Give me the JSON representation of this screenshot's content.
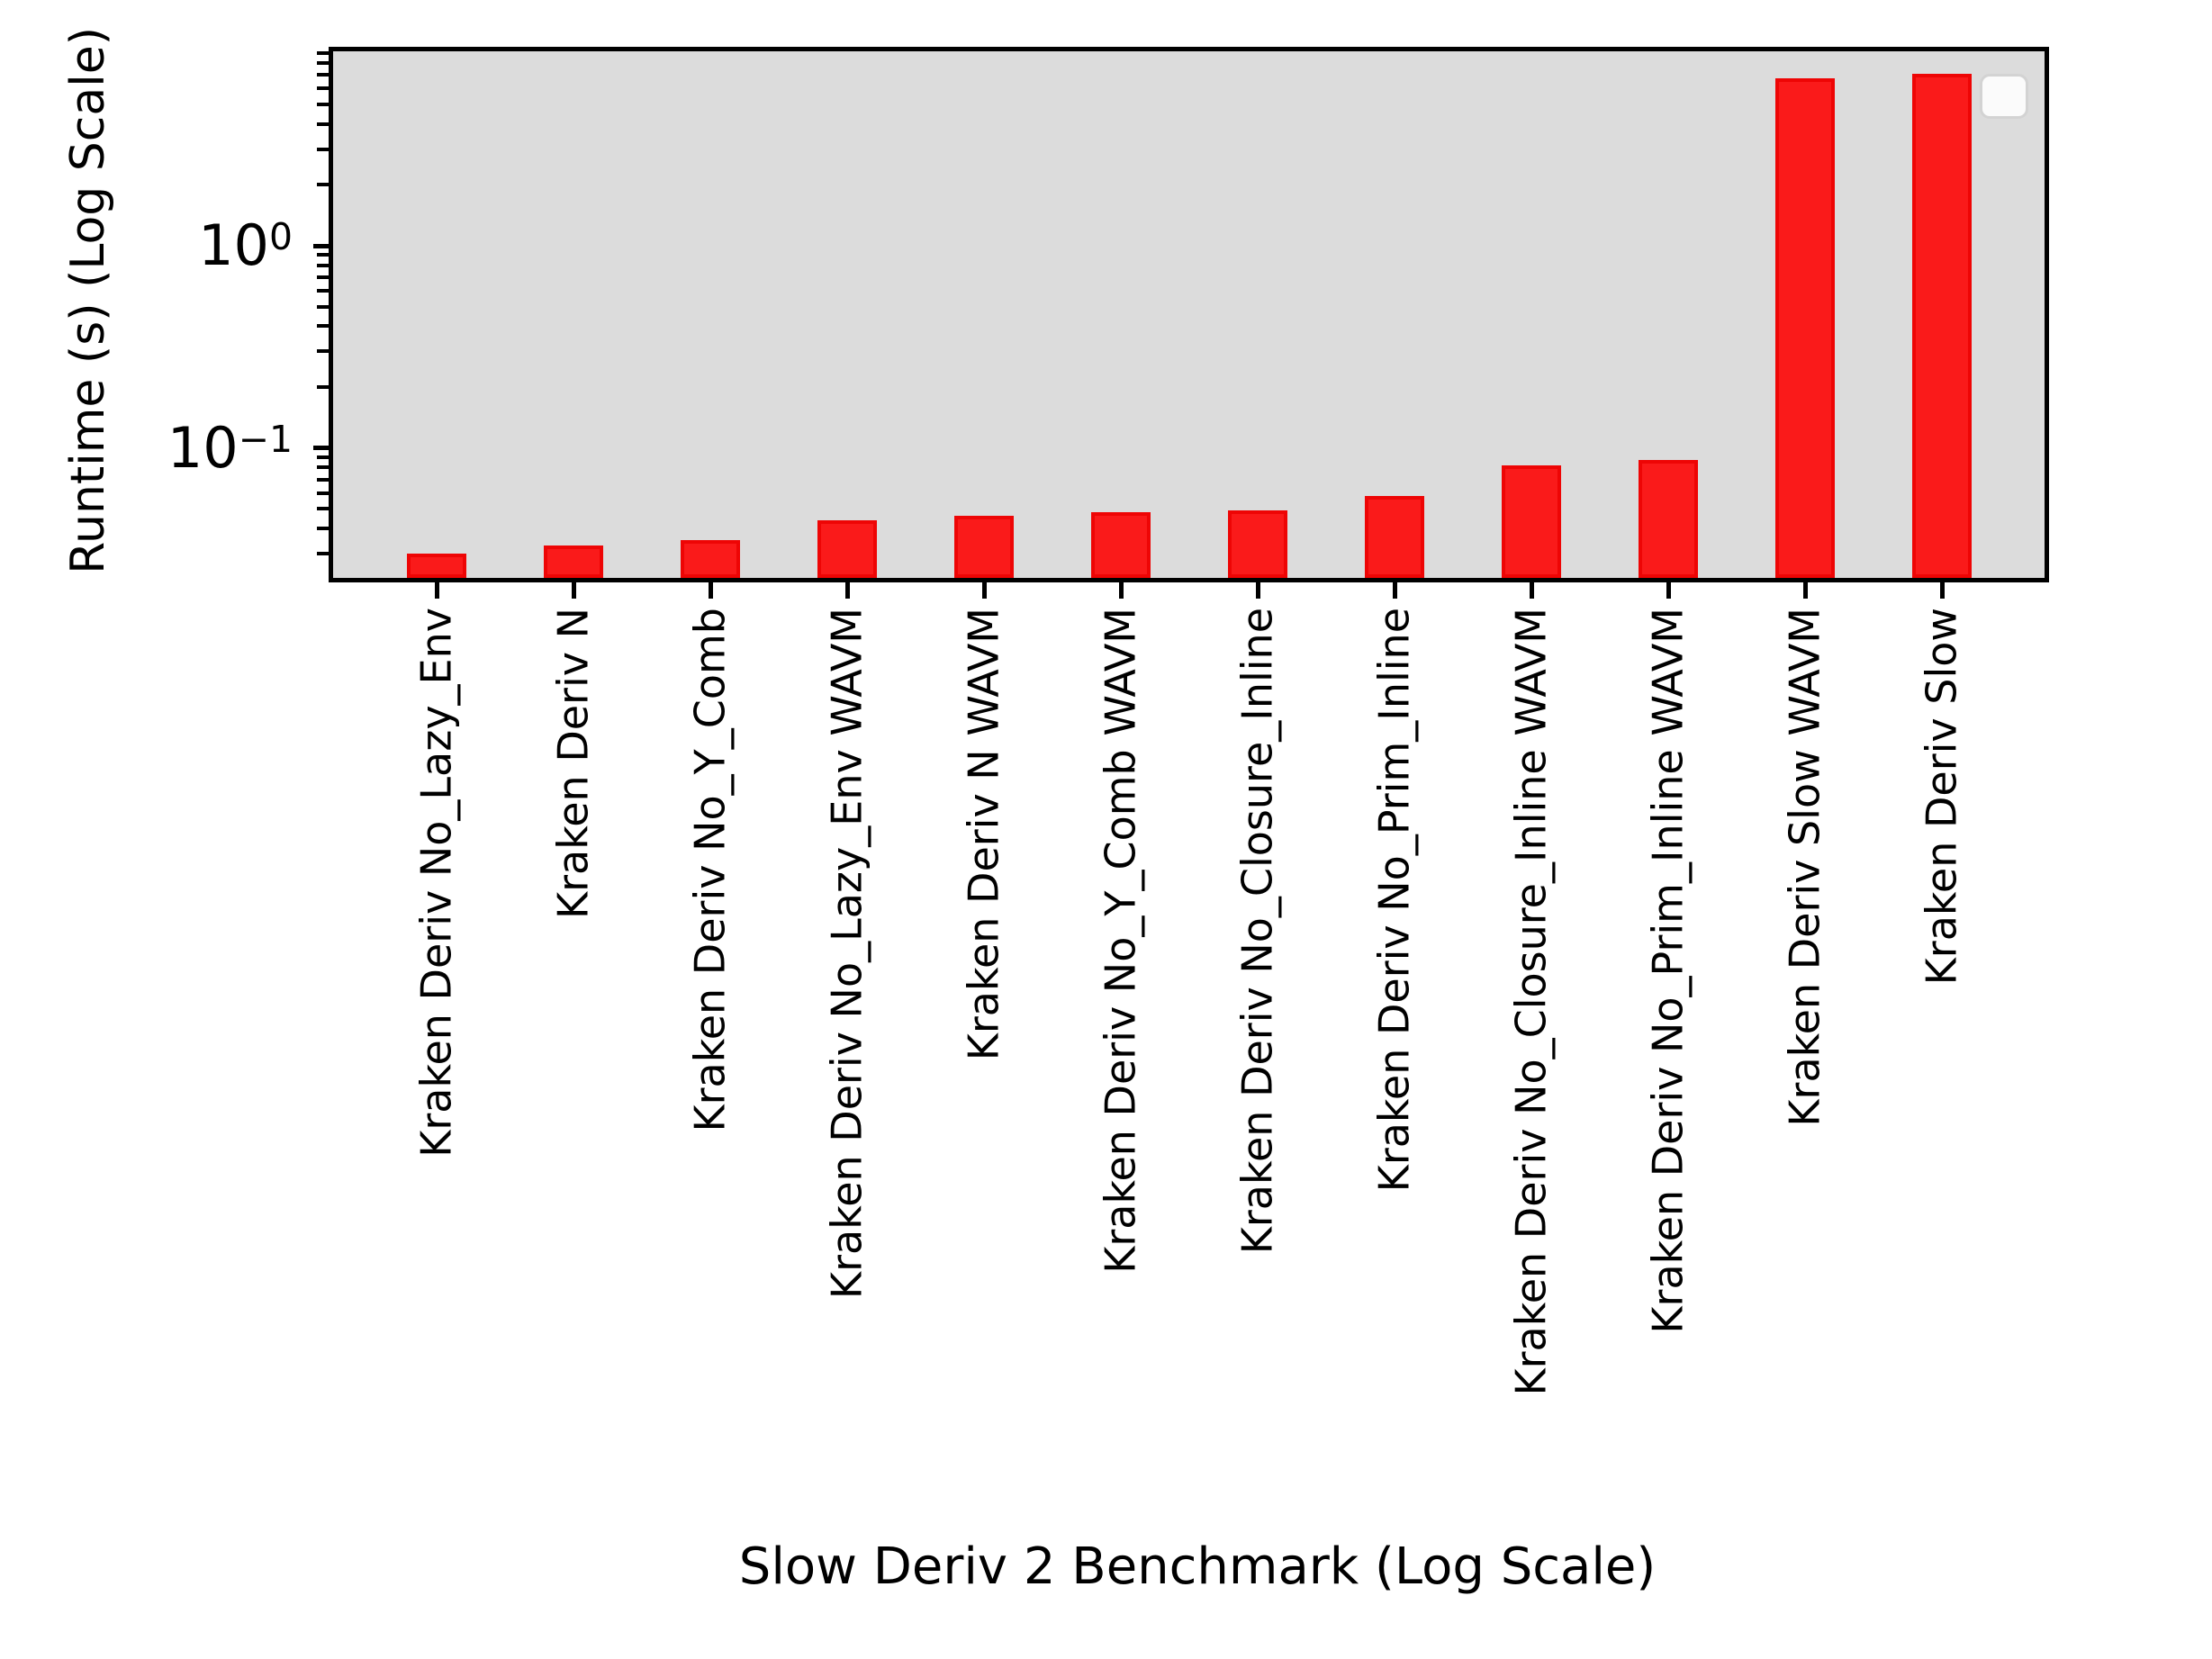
{
  "chart_data": {
    "type": "bar",
    "title": "",
    "xlabel": "Slow Deriv 2 Benchmark (Log Scale)",
    "ylabel": "Runtime (s) (Log Scale)",
    "yscale": "log",
    "ylim": [
      0.022,
      9.4
    ],
    "grid": false,
    "plot_bg_color": "#dcdcdc",
    "bar_fill_color": "#fa1a1a",
    "bar_edge_color": "#ee0505",
    "categories": [
      "Kraken Deriv No_Lazy_Env",
      "Kraken Deriv N",
      "Kraken Deriv No_Y_Comb",
      "Kraken Deriv No_Lazy_Env WAVM",
      "Kraken Deriv N WAVM",
      "Kraken Deriv No_Y_Comb WAVM",
      "Kraken Deriv No_Closure_Inline",
      "Kraken Deriv No_Prim_Inline",
      "Kraken Deriv No_Closure_Inline WAVM",
      "Kraken Deriv No_Prim_Inline WAVM",
      "Kraken Deriv Slow WAVM",
      "Kraken Deriv Slow"
    ],
    "values": [
      0.03,
      0.033,
      0.035,
      0.044,
      0.046,
      0.048,
      0.049,
      0.058,
      0.082,
      0.087,
      6.7,
      7.1
    ],
    "y_major_ticks": [
      {
        "value": 1,
        "base": "10",
        "exp": "0"
      },
      {
        "value": 0.1,
        "base": "10",
        "exp": "−1"
      }
    ],
    "y_minor_tick_mantissas": [
      2,
      3,
      4,
      5,
      6,
      7,
      8,
      9
    ],
    "legend": {
      "visible": true,
      "entries": [],
      "position": "upper right"
    }
  }
}
